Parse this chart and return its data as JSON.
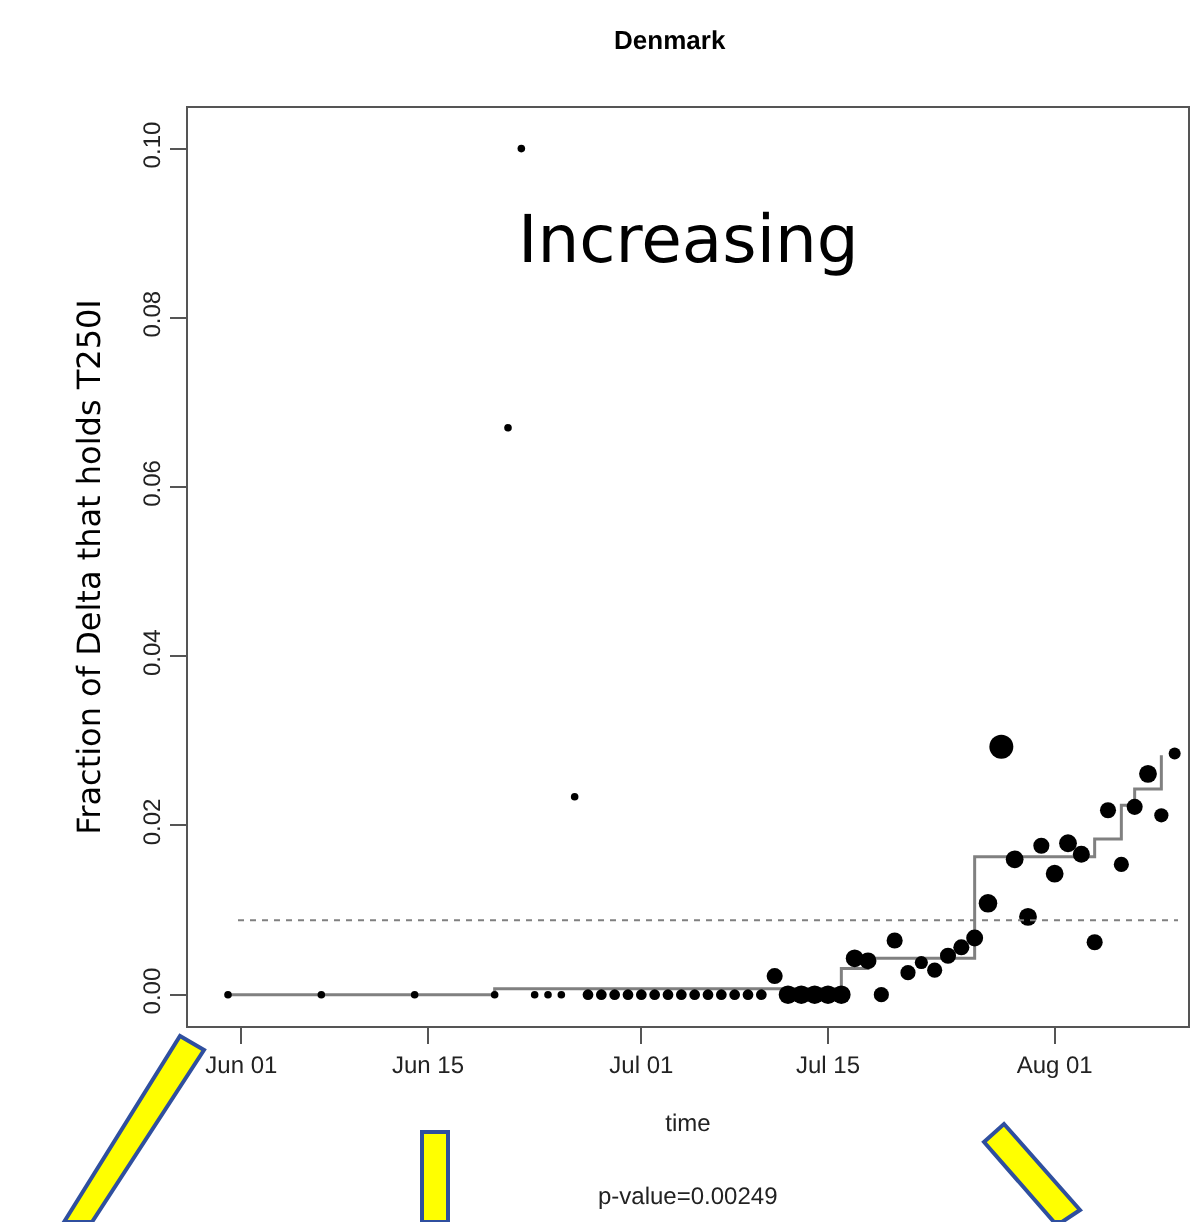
{
  "chart_data": {
    "type": "bubble",
    "title": "Denmark",
    "xlabel": "time",
    "ylabel": "Fraction of Delta that holds T250I",
    "annotations": [
      "Increasing",
      "p-value=0.00249"
    ],
    "series": [
      {
        "color": "#000000",
        "x": [
          "--05-31",
          "--06-07",
          "--06-14",
          "--06-20",
          "--06-21",
          "--06-22",
          "--06-23",
          "--06-24",
          "--06-25",
          "--06-26",
          "--06-27",
          "--06-28",
          "--06-29",
          "--06-30",
          "--07-01",
          "--07-02",
          "--07-03",
          "--07-04",
          "--07-05",
          "--07-06",
          "--07-07",
          "--07-08",
          "--07-09",
          "--07-10",
          "--07-11",
          "--07-12",
          "--07-13",
          "--07-14",
          "--07-15",
          "--07-16",
          "--07-17",
          "--07-18",
          "--07-19",
          "--07-20",
          "--07-21",
          "--07-22",
          "--07-23",
          "--07-24",
          "--07-25",
          "--07-26",
          "--07-27",
          "--07-28",
          "--07-29",
          "--07-30",
          "--07-31",
          "--08-01",
          "--08-02",
          "--08-03",
          "--08-04",
          "--08-05",
          "--08-06",
          "--08-07",
          "--08-08",
          "--08-09",
          "--08-10"
        ],
        "values": [
          0,
          0,
          0,
          0,
          0.067,
          0.1,
          0,
          0,
          0,
          0.0234,
          0,
          0,
          0,
          0,
          0,
          0,
          0,
          0,
          0,
          0,
          0,
          0,
          0,
          0,
          0.0022,
          0,
          0,
          0,
          0,
          0,
          0.0043,
          0.004,
          0,
          0.0064,
          0.0026,
          0.0038,
          0.0029,
          0.0046,
          0.0056,
          0.0067,
          0.0108,
          0.0293,
          0.016,
          0.0092,
          0.0176,
          0.0143,
          0.0179,
          0.0166,
          0.0062,
          0.0218,
          0.0154,
          0.0222,
          0.0261,
          0.0212,
          0.0285
        ],
        "sizes": [
          0.1,
          0.1,
          0.1,
          0.1,
          0.1,
          0.1,
          0.1,
          0.1,
          0.1,
          0.1,
          0.2,
          0.2,
          0.2,
          0.2,
          0.2,
          0.2,
          0.2,
          0.2,
          0.2,
          0.2,
          0.2,
          0.2,
          0.2,
          0.2,
          0.45,
          0.6,
          0.6,
          0.6,
          0.6,
          0.6,
          0.55,
          0.5,
          0.4,
          0.45,
          0.4,
          0.3,
          0.4,
          0.45,
          0.45,
          0.5,
          0.6,
          1,
          0.55,
          0.55,
          0.45,
          0.55,
          0.55,
          0.5,
          0.45,
          0.45,
          0.4,
          0.45,
          0.55,
          0.35,
          0.25
        ]
      },
      {
        "type": "step",
        "color": "#808080",
        "line_style": "solid",
        "x": [
          "--05-31",
          "--06-20",
          "--07-16",
          "--07-18",
          "--07-26",
          "--08-04",
          "--08-06",
          "--08-07",
          "--08-09"
        ],
        "values": [
          0,
          0.0007,
          0.0031,
          0.0043,
          0.0163,
          0.0184,
          0.0224,
          0.0243,
          0.0283
        ]
      }
    ],
    "ref_lines": [
      {
        "axis": "y",
        "value": 0.0088,
        "color": "#808080",
        "line_style": "dotted"
      }
    ],
    "xlim": [
      "--05-28",
      "--08-11"
    ],
    "xticks": [
      {
        "value": "--06-01",
        "label": "Jun 01"
      },
      {
        "value": "--06-15",
        "label": "Jun 15"
      },
      {
        "value": "--07-01",
        "label": "Jul 01"
      },
      {
        "value": "--07-15",
        "label": "Jul 15"
      },
      {
        "value": "--08-01",
        "label": "Aug 01"
      }
    ],
    "ylim": [
      -0.0037,
      0.1048
    ],
    "yticks": [
      {
        "value": 0,
        "label": "0.00"
      },
      {
        "value": 0.02,
        "label": "0.02"
      },
      {
        "value": 0.04,
        "label": "0.04"
      },
      {
        "value": 0.06,
        "label": "0.06"
      },
      {
        "value": 0.08,
        "label": "0.08"
      },
      {
        "value": 0.1,
        "label": "0.10"
      }
    ]
  }
}
